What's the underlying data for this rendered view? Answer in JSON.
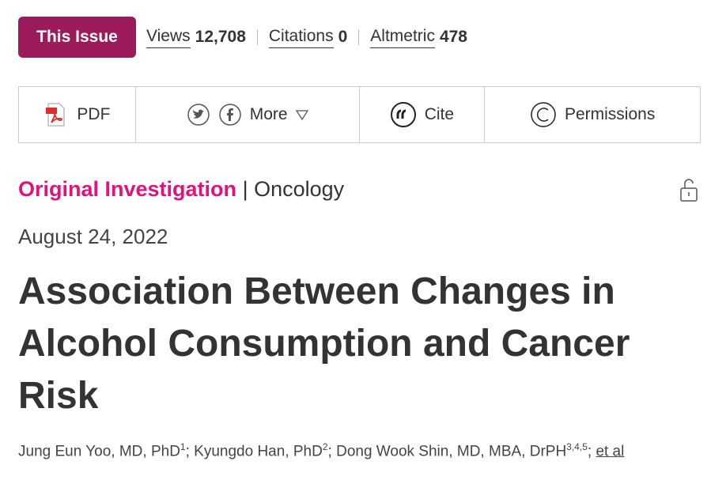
{
  "header": {
    "badge": "This Issue",
    "metrics": [
      {
        "label": "Views",
        "value": "12,708"
      },
      {
        "label": "Citations",
        "value": "0"
      },
      {
        "label": "Altmetric",
        "value": "478"
      }
    ]
  },
  "toolbar": {
    "pdf": "PDF",
    "more": "More",
    "cite": "Cite",
    "permissions": "Permissions"
  },
  "article": {
    "type": "Original Investigation",
    "separator": "|",
    "subject": "Oncology",
    "date": "August 24, 2022",
    "title": "Association Between Changes in Alcohol Consumption and Cancer Risk",
    "author_separator": ";",
    "authors": [
      {
        "name": "Jung Eun Yoo, MD, PhD",
        "affiliations": "1"
      },
      {
        "name": "Kyungdo Han, PhD",
        "affiliations": "2"
      },
      {
        "name": "Dong Wook Shin, MD, MBA, DrPH",
        "affiliations": "3,4,5"
      }
    ],
    "et_al": "et al"
  }
}
